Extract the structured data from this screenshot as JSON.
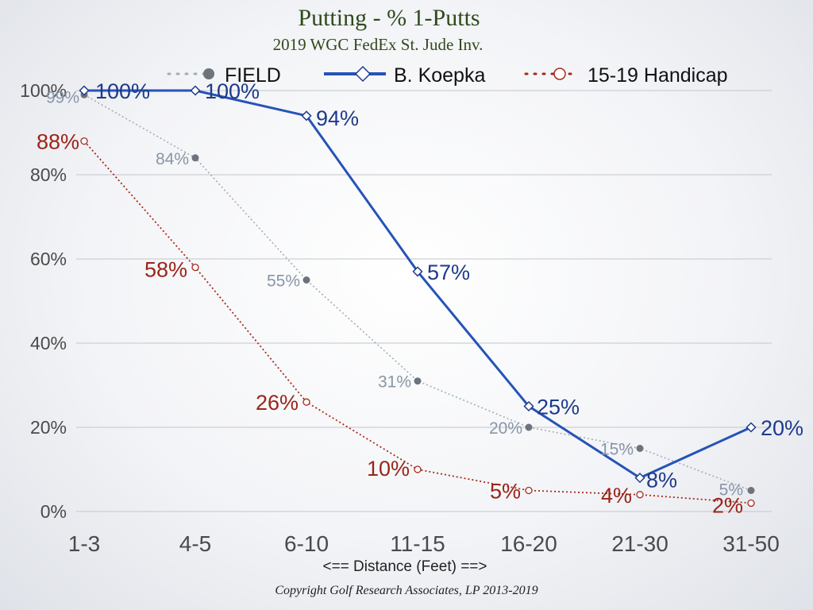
{
  "chart_data": {
    "type": "line",
    "title": "Putting - % 1-Putts",
    "subtitle": "2019 WGC FedEx St. Jude Inv.",
    "xlabel": "<== Distance (Feet) ==>",
    "ylabel": "",
    "categories": [
      "1-3",
      "4-5",
      "6-10",
      "11-15",
      "16-20",
      "21-30",
      "31-50"
    ],
    "yticks": [
      0,
      20,
      40,
      60,
      80,
      100
    ],
    "ytick_labels": [
      "0%",
      "20%",
      "40%",
      "60%",
      "80%",
      "100%"
    ],
    "ylim": [
      0,
      100
    ],
    "grid": true,
    "legend_position": "top",
    "series": [
      {
        "name": "FIELD",
        "values": [
          99,
          84,
          55,
          31,
          20,
          15,
          5
        ],
        "labels": [
          "99%",
          "84%",
          "55%",
          "31%",
          "20%",
          "15%",
          "5%"
        ],
        "color": "#a4acb8",
        "marker_color": "#6d737b",
        "style": "dotted",
        "marker": "filled-circle"
      },
      {
        "name": "B. Koepka",
        "values": [
          100,
          100,
          94,
          57,
          25,
          8,
          20
        ],
        "labels": [
          "100%",
          "100%",
          "94%",
          "57%",
          "25%",
          "8%",
          "20%"
        ],
        "color": "#2553b8",
        "style": "solid",
        "marker": "open-diamond"
      },
      {
        "name": "15-19 Handicap",
        "values": [
          88,
          58,
          26,
          10,
          5,
          4,
          2
        ],
        "labels": [
          "88%",
          "58%",
          "26%",
          "10%",
          "5%",
          "4%",
          "2%"
        ],
        "color": "#a52a1c",
        "style": "dotted",
        "marker": "open-circle"
      }
    ]
  },
  "footer": {
    "copyright": "Copyright Golf Research Associates, LP 2013-2019"
  }
}
